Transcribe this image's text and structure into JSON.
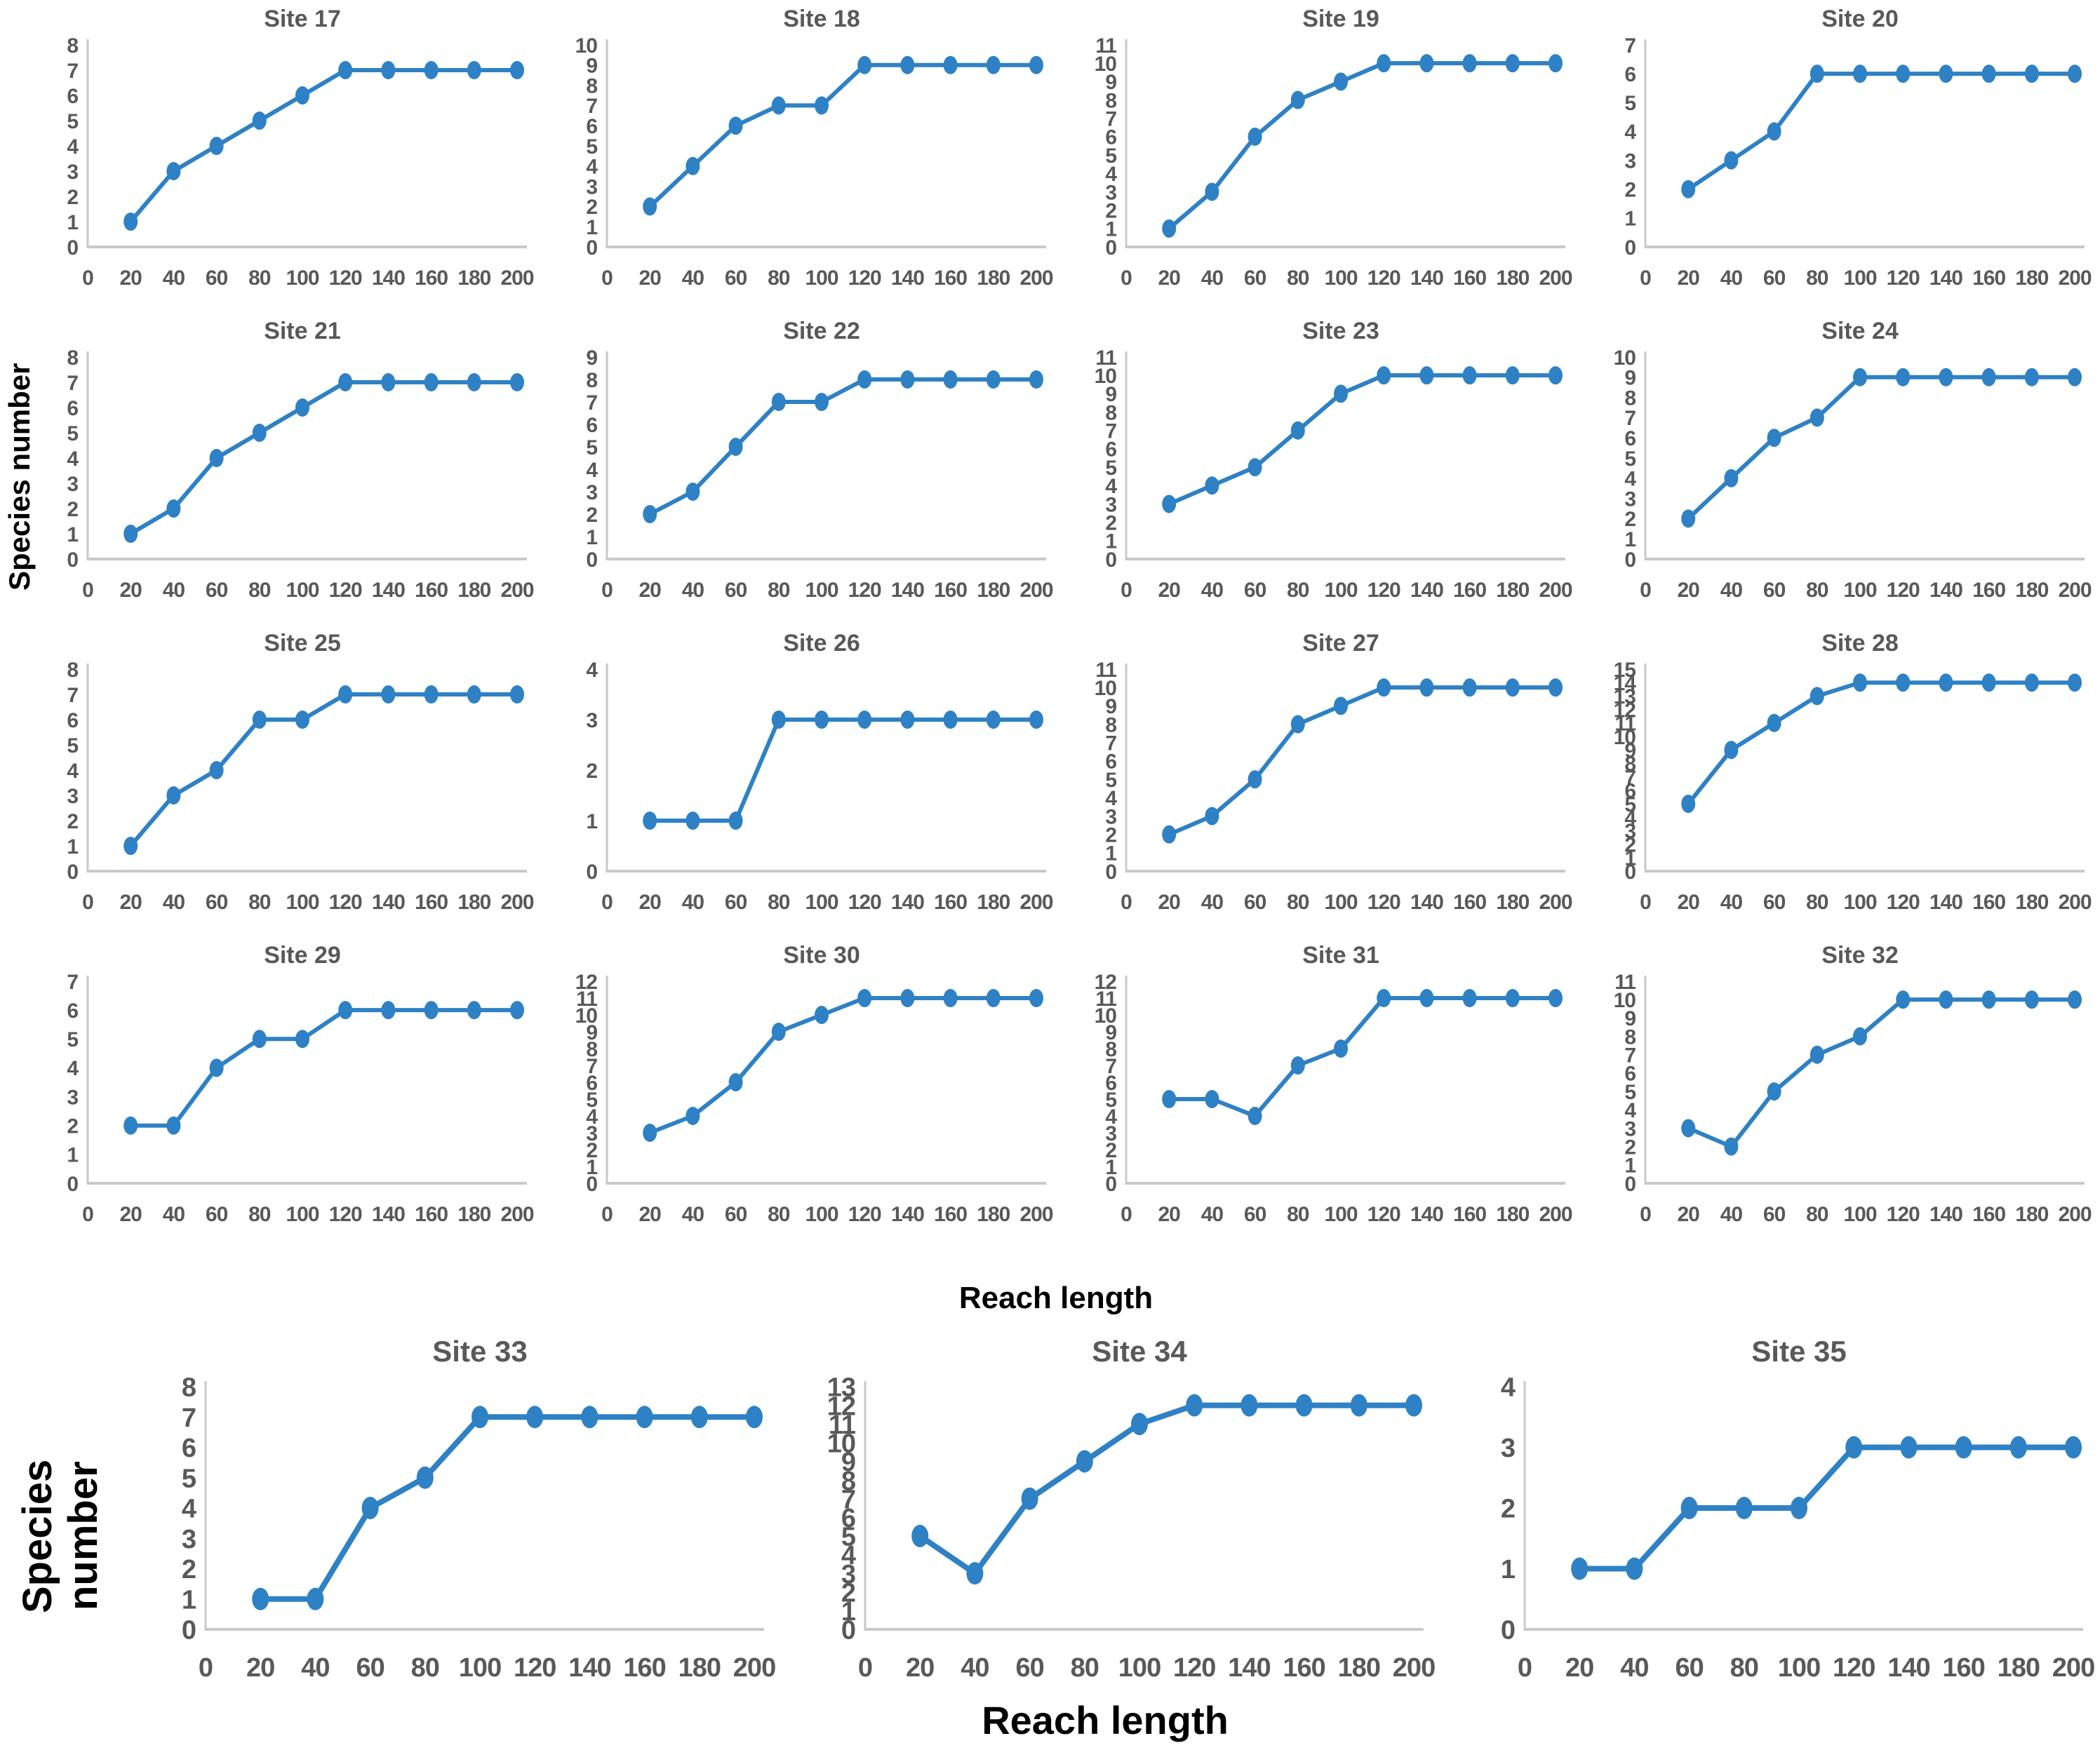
{
  "labels": {
    "species_number": "Species number",
    "reach_length": "Reach length"
  },
  "chart_data": {
    "type": "line",
    "x": [
      20,
      40,
      60,
      80,
      100,
      120,
      140,
      160,
      180,
      200
    ],
    "x_ticks": [
      0,
      20,
      40,
      60,
      80,
      100,
      120,
      140,
      160,
      180,
      200
    ],
    "xlabel": "Reach length",
    "ylabel": "Species number",
    "line_color": "#2e81c5",
    "axis_color": "#c9c9c9",
    "text_color": "#595959",
    "grid": false,
    "legend": "none",
    "charts": [
      {
        "title": "Site 17",
        "ymax": 8,
        "values": [
          1,
          3,
          4,
          5,
          6,
          7,
          7,
          7,
          7,
          7
        ]
      },
      {
        "title": "Site 18",
        "ymax": 10,
        "values": [
          2,
          4,
          6,
          7,
          7,
          9,
          9,
          9,
          9,
          9
        ]
      },
      {
        "title": "Site 19",
        "ymax": 11,
        "values": [
          1,
          3,
          6,
          8,
          9,
          10,
          10,
          10,
          10,
          10
        ]
      },
      {
        "title": "Site 20",
        "ymax": 7,
        "values": [
          2,
          3,
          4,
          6,
          6,
          6,
          6,
          6,
          6,
          6
        ]
      },
      {
        "title": "Site 21",
        "ymax": 8,
        "values": [
          1,
          2,
          4,
          5,
          6,
          7,
          7,
          7,
          7,
          7
        ]
      },
      {
        "title": "Site 22",
        "ymax": 9,
        "values": [
          2,
          3,
          5,
          7,
          7,
          8,
          8,
          8,
          8,
          8
        ]
      },
      {
        "title": "Site 23",
        "ymax": 11,
        "values": [
          3,
          4,
          5,
          7,
          9,
          10,
          10,
          10,
          10,
          10
        ]
      },
      {
        "title": "Site 24",
        "ymax": 10,
        "values": [
          2,
          4,
          6,
          7,
          9,
          9,
          9,
          9,
          9,
          9
        ]
      },
      {
        "title": "Site 25",
        "ymax": 8,
        "values": [
          1,
          3,
          4,
          6,
          6,
          7,
          7,
          7,
          7,
          7
        ]
      },
      {
        "title": "Site 26",
        "ymax": 4,
        "values": [
          1,
          1,
          1,
          3,
          3,
          3,
          3,
          3,
          3,
          3
        ]
      },
      {
        "title": "Site 27",
        "ymax": 11,
        "values": [
          2,
          3,
          5,
          8,
          9,
          10,
          10,
          10,
          10,
          10
        ]
      },
      {
        "title": "Site 28",
        "ymax": 15,
        "values": [
          5,
          9,
          11,
          13,
          14,
          14,
          14,
          14,
          14,
          14
        ]
      },
      {
        "title": "Site 29",
        "ymax": 7,
        "values": [
          2,
          2,
          4,
          5,
          5,
          6,
          6,
          6,
          6,
          6
        ]
      },
      {
        "title": "Site 30",
        "ymax": 12,
        "values": [
          3,
          4,
          6,
          9,
          10,
          11,
          11,
          11,
          11,
          11
        ]
      },
      {
        "title": "Site 31",
        "ymax": 12,
        "values": [
          5,
          5,
          4,
          7,
          8,
          11,
          11,
          11,
          11,
          11
        ]
      },
      {
        "title": "Site 32",
        "ymax": 11,
        "values": [
          3,
          2,
          5,
          7,
          8,
          10,
          10,
          10,
          10,
          10
        ]
      },
      {
        "title": "Site 33",
        "ymax": 8,
        "values": [
          1,
          1,
          4,
          5,
          7,
          7,
          7,
          7,
          7,
          7
        ]
      },
      {
        "title": "Site 34",
        "ymax": 13,
        "values": [
          5,
          3,
          7,
          9,
          11,
          12,
          12,
          12,
          12,
          12
        ]
      },
      {
        "title": "Site 35",
        "ymax": 4,
        "values": [
          1,
          1,
          2,
          2,
          2,
          3,
          3,
          3,
          3,
          3
        ]
      }
    ]
  }
}
